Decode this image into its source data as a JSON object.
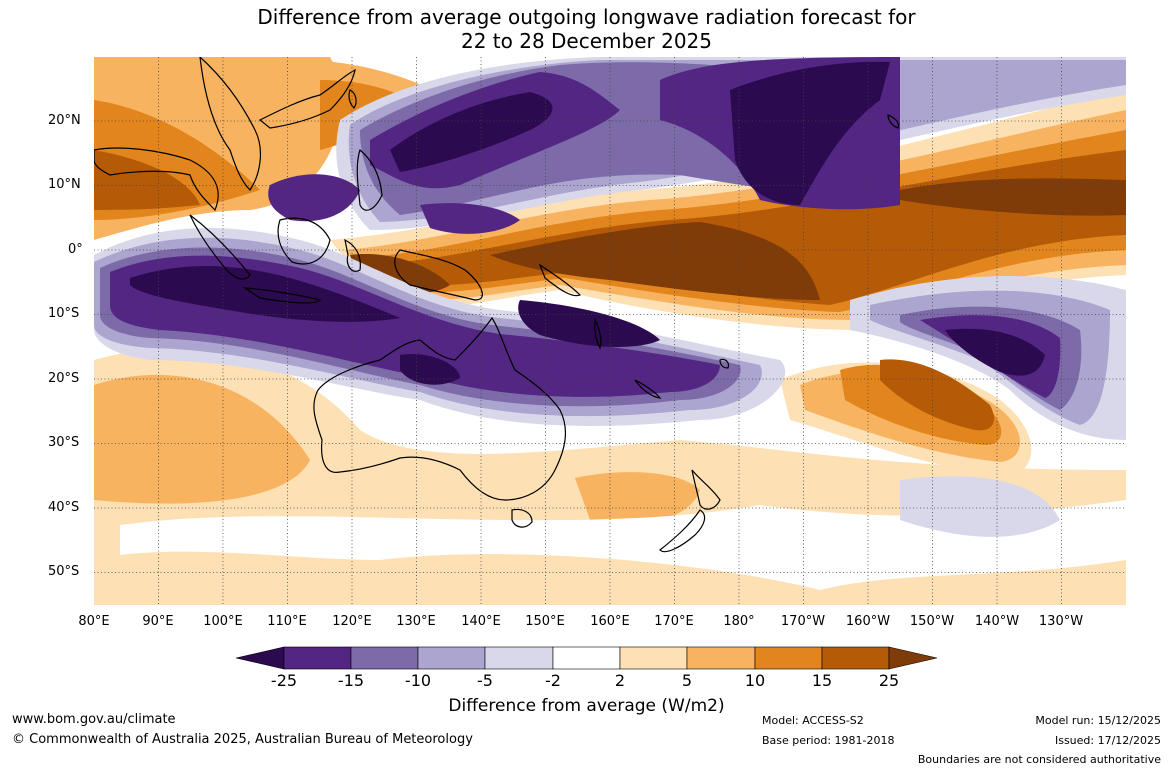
{
  "title": {
    "line1": "Difference from average outgoing longwave radiation forecast for",
    "line2": "22 to 28 December 2025"
  },
  "axes": {
    "longitudes": [
      "80°E",
      "90°E",
      "100°E",
      "110°E",
      "120°E",
      "130°E",
      "140°E",
      "150°E",
      "160°E",
      "170°E",
      "180°",
      "170°W",
      "160°W",
      "150°W",
      "140°W",
      "130°W"
    ],
    "latitudes": [
      "20°N",
      "10°N",
      "0°",
      "10°S",
      "20°S",
      "30°S",
      "40°S",
      "50°S"
    ]
  },
  "colorbar": {
    "ticks": [
      "-25",
      "-15",
      "-10",
      "-5",
      "-2",
      "2",
      "5",
      "10",
      "15",
      "25"
    ],
    "colors": {
      "lt_neg25": "#2b0a4f",
      "neg25_neg15": "#532683",
      "neg15_neg10": "#7d6aa8",
      "neg10_neg5": "#aba5cf",
      "neg5_neg2": "#d9d8ea",
      "neg2_2": "#ffffff",
      "p2_5": "#fde0b4",
      "p5_10": "#f8b360",
      "p10_15": "#e2851d",
      "p15_25": "#b55b07",
      "gt_25": "#7f3b08"
    },
    "label": "Difference from average (W/m2)"
  },
  "footer": {
    "website": "www.bom.gov.au/climate",
    "copyright": "© Commonwealth of Australia 2025, Australian Bureau of Meteorology",
    "model": "Model: ACCESS-S2",
    "base_period": "Base period: 1981-2018",
    "model_run": "Model run: 15/12/2025",
    "issued": "Issued: 17/12/2025",
    "disclaimer": "Boundaries are not considered authoritative"
  }
}
